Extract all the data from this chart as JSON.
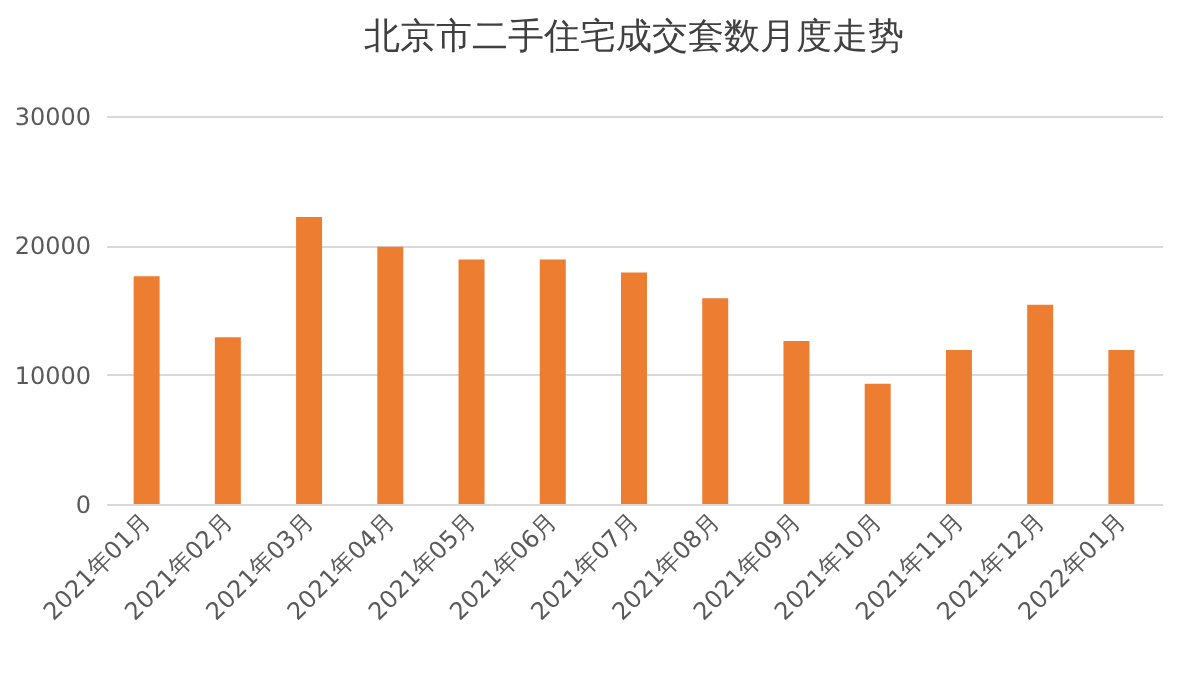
{
  "chart_data": {
    "type": "bar",
    "title": "北京市二手住宅成交套数月度走势",
    "categories": [
      "2021年01月",
      "2021年02月",
      "2021年03月",
      "2021年04月",
      "2021年05月",
      "2021年06月",
      "2021年07月",
      "2021年08月",
      "2021年09月",
      "2021年10月",
      "2021年11月",
      "2021年12月",
      "2022年01月"
    ],
    "values": [
      17600,
      12900,
      22200,
      19900,
      18900,
      18900,
      17900,
      15900,
      12600,
      9300,
      11900,
      15400,
      11900
    ],
    "color": "#ed7d31",
    "ylim": [
      0,
      30000
    ],
    "yticks": [
      0,
      10000,
      20000,
      30000
    ],
    "grid": "y"
  }
}
